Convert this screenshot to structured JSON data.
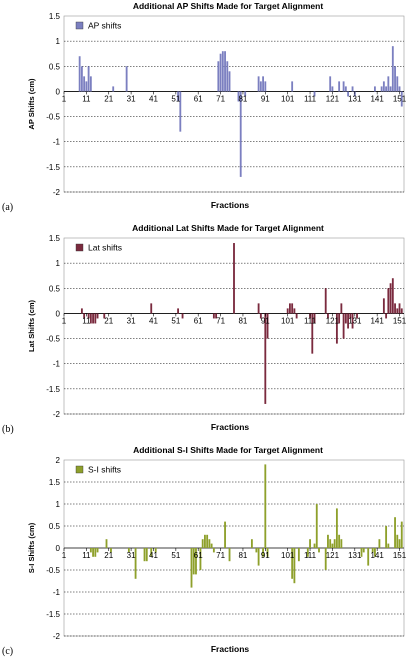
{
  "chart_data": [
    {
      "type": "bar",
      "panel_label": "(a)",
      "title": "Additional AP Shifts Made for Target Alignment",
      "xlabel": "Fractions",
      "ylabel": "AP Shifts (cm)",
      "legend": "AP shifts",
      "legend_position": "top-left",
      "color": "#7b7fc0",
      "ylim": [
        -2,
        1.5
      ],
      "yticks": [
        "1.5",
        "1",
        "0.5",
        "0",
        "-0.5",
        "-1",
        "-1.5",
        "-2"
      ],
      "xticks": [
        "1",
        "11",
        "21",
        "31",
        "41",
        "51",
        "61",
        "71",
        "81",
        "91",
        "101",
        "111",
        "121",
        "131",
        "141",
        "151"
      ],
      "grid": true,
      "x": [
        8,
        9,
        10,
        11,
        12,
        13,
        23,
        29,
        52,
        53,
        70,
        71,
        72,
        73,
        74,
        75,
        79,
        80,
        82,
        88,
        89,
        90,
        91,
        103,
        113,
        120,
        121,
        124,
        126,
        127,
        128,
        130,
        131,
        140,
        143,
        144,
        145,
        146,
        147,
        148,
        149,
        150,
        151,
        152
      ],
      "values": [
        0.7,
        0.5,
        0.3,
        0.2,
        0.5,
        0.3,
        0.1,
        0.5,
        -0.2,
        -0.8,
        0.6,
        0.75,
        0.8,
        0.8,
        0.6,
        0.4,
        -0.2,
        -1.7,
        -0.1,
        0.3,
        0.2,
        0.3,
        0.2,
        0.2,
        -0.1,
        0.3,
        0.1,
        0.2,
        0.2,
        0.1,
        -0.1,
        0.1,
        -0.1,
        0.1,
        0.1,
        0.2,
        0.1,
        0.3,
        0.1,
        0.9,
        0.5,
        0.3,
        0.1,
        -0.3
      ]
    },
    {
      "type": "bar",
      "panel_label": "(b)",
      "title": "Additional Lat Shifts Made for Target Alignment",
      "xlabel": "Fractions",
      "ylabel": "Lat Shifts (cm)",
      "legend": "Lat shifts",
      "legend_position": "top-left",
      "color": "#7a2a3e",
      "ylim": [
        -2,
        1.5
      ],
      "yticks": [
        "1.5",
        "1",
        "0.5",
        "0",
        "-0.5",
        "-1",
        "-1.5",
        "-2"
      ],
      "xticks": [
        "1",
        "11",
        "21",
        "31",
        "41",
        "51",
        "61",
        "71",
        "81",
        "91",
        "101",
        "111",
        "121",
        "131",
        "141",
        "151"
      ],
      "grid": true,
      "x": [
        9,
        10,
        12,
        13,
        14,
        15,
        16,
        19,
        40,
        52,
        54,
        68,
        69,
        77,
        88,
        89,
        91,
        92,
        101,
        102,
        103,
        104,
        105,
        111,
        112,
        113,
        118,
        119,
        123,
        124,
        125,
        126,
        127,
        128,
        129,
        130,
        132,
        144,
        145,
        146,
        147,
        148,
        149,
        150,
        151,
        152
      ],
      "values": [
        0.1,
        -0.1,
        -0.1,
        -0.2,
        -0.2,
        -0.2,
        -0.1,
        -0.1,
        0.2,
        0.1,
        -0.1,
        -0.1,
        -0.1,
        1.4,
        0.2,
        -0.1,
        -1.8,
        -0.5,
        0.1,
        0.2,
        0.2,
        0.1,
        -0.1,
        -0.1,
        -0.8,
        -0.2,
        0.5,
        -0.1,
        -0.6,
        -0.2,
        0.2,
        -0.5,
        -0.2,
        -0.3,
        -0.1,
        -0.3,
        -0.1,
        0.3,
        -0.1,
        0.5,
        0.6,
        0.7,
        0.2,
        0.1,
        0.2,
        0.1
      ]
    },
    {
      "type": "bar",
      "panel_label": "(c)",
      "title": "Additional S-I Shifts Made for Target Alignment",
      "xlabel": "Fractions",
      "ylabel": "S-I Shifts (cm)",
      "legend": "S-I shifts",
      "legend_position": "top-left",
      "color": "#8ea02b",
      "ylim": [
        -2,
        2
      ],
      "yticks": [
        "2",
        "1.5",
        "1",
        "0.5",
        "0",
        "-0.5",
        "-1",
        "-1.5",
        "-2"
      ],
      "xticks": [
        "1",
        "11",
        "21",
        "31",
        "41",
        "51",
        "61",
        "71",
        "81",
        "91",
        "101",
        "111",
        "121",
        "131",
        "141",
        "151"
      ],
      "grid": true,
      "x": [
        13,
        14,
        15,
        16,
        20,
        22,
        30,
        33,
        37,
        38,
        40,
        42,
        58,
        59,
        60,
        62,
        63,
        64,
        65,
        66,
        67,
        68,
        73,
        75,
        85,
        87,
        88,
        90,
        91,
        92,
        103,
        104,
        106,
        110,
        111,
        113,
        114,
        115,
        118,
        119,
        120,
        121,
        122,
        123,
        124,
        125,
        134,
        135,
        137,
        139,
        140,
        142,
        145,
        146,
        149,
        150,
        151,
        152
      ],
      "values": [
        -0.1,
        -0.2,
        -0.2,
        -0.1,
        0.2,
        -0.1,
        -0.1,
        -0.7,
        -0.3,
        -0.3,
        -0.2,
        -0.1,
        -0.9,
        -0.6,
        -0.6,
        -0.5,
        0.2,
        0.3,
        0.3,
        0.2,
        0.1,
        -0.1,
        0.6,
        -0.3,
        0.2,
        -0.1,
        -0.4,
        -0.2,
        1.9,
        -0.2,
        -0.7,
        -0.8,
        -0.3,
        -0.2,
        0.2,
        0.1,
        1.0,
        -0.1,
        -0.5,
        0.3,
        0.2,
        0.1,
        0.2,
        0.9,
        0.3,
        0.2,
        -0.2,
        -0.1,
        -0.4,
        -0.1,
        -0.2,
        0.2,
        0.5,
        0.1,
        0.7,
        0.3,
        0.2,
        0.6
      ]
    }
  ]
}
